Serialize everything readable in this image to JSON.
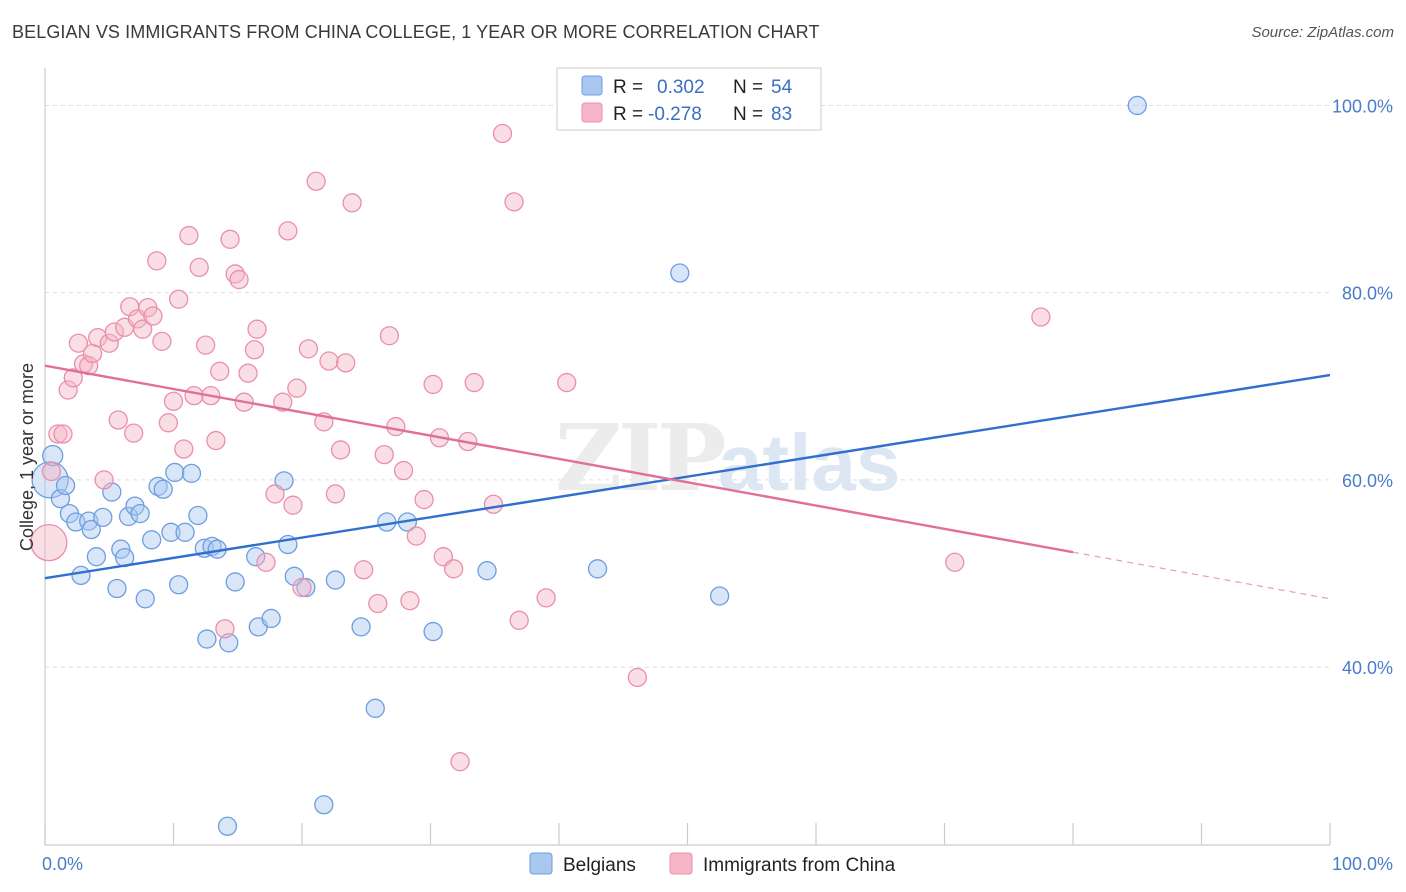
{
  "title": "BELGIAN VS IMMIGRANTS FROM CHINA COLLEGE, 1 YEAR OR MORE CORRELATION CHART",
  "source": "Source: ZipAtlas.com",
  "watermark": {
    "zip": "ZIP",
    "atlas": "atlas"
  },
  "colors": {
    "belgian_fill": "#a9c8f0",
    "belgian_stroke": "#6d9ee0",
    "belgian_line": "#2f6fce",
    "china_fill": "#f5b6c8",
    "china_stroke": "#ea8fab",
    "china_line": "#e0709a",
    "grid": "#dddddd",
    "tick_label": "#4a7cc9"
  },
  "legend": {
    "rows": [
      {
        "r_label": "R =",
        "r_value": "0.302",
        "n_label": "N =",
        "n_value": "54"
      },
      {
        "r_label": "R =",
        "r_value": "-0.278",
        "n_label": "N =",
        "n_value": "83"
      }
    ]
  },
  "bottom_legend": [
    "Belgians",
    "Immigrants from China"
  ],
  "chart_data": {
    "type": "scatter",
    "ylabel": "College, 1 year or more",
    "xlabel": "",
    "xlim": [
      0,
      100
    ],
    "ylim": [
      21,
      104
    ],
    "x_tick_labels": [
      {
        "value": 0,
        "label": "0.0%"
      },
      {
        "value": 100,
        "label": "100.0%"
      }
    ],
    "y_tick_labels": [
      {
        "value": 100,
        "label": "100.0%"
      },
      {
        "value": 80,
        "label": "80.0%"
      },
      {
        "value": 60,
        "label": "60.0%"
      },
      {
        "value": 40,
        "label": "40.0%"
      }
    ],
    "y_gridlines": [
      100,
      80,
      60,
      40
    ],
    "x_minor_ticks": [
      0,
      10,
      20,
      30,
      40,
      50,
      60,
      70,
      80,
      90,
      100
    ],
    "grid": true,
    "legend_placement": "top-center",
    "series": [
      {
        "name": "Belgians",
        "r": 0.302,
        "n": 54,
        "trend": {
          "x": [
            0,
            100
          ],
          "y": [
            49.5,
            71.2
          ],
          "dashed_from": null
        },
        "points": [
          [
            0.4,
            60.0,
            18
          ],
          [
            0.6,
            62.6,
            10
          ],
          [
            1.2,
            58.0,
            9
          ],
          [
            1.6,
            59.4,
            9
          ],
          [
            1.9,
            56.4,
            9
          ],
          [
            2.4,
            55.5,
            9
          ],
          [
            2.8,
            49.8,
            9
          ],
          [
            3.4,
            55.6,
            9
          ],
          [
            3.6,
            54.7,
            9
          ],
          [
            4.0,
            51.8,
            9
          ],
          [
            4.5,
            56.0,
            9
          ],
          [
            5.2,
            58.7,
            9
          ],
          [
            5.6,
            48.4,
            9
          ],
          [
            5.9,
            52.6,
            9
          ],
          [
            6.2,
            51.7,
            9
          ],
          [
            6.5,
            56.1,
            9
          ],
          [
            7.0,
            57.2,
            9
          ],
          [
            7.4,
            56.4,
            9
          ],
          [
            7.8,
            47.3,
            9
          ],
          [
            8.3,
            53.6,
            9
          ],
          [
            8.8,
            59.3,
            9
          ],
          [
            9.2,
            59.0,
            9
          ],
          [
            9.8,
            54.4,
            9
          ],
          [
            10.1,
            60.8,
            9
          ],
          [
            10.4,
            48.8,
            9
          ],
          [
            10.9,
            54.4,
            9
          ],
          [
            11.4,
            60.7,
            9
          ],
          [
            11.9,
            56.2,
            9
          ],
          [
            12.4,
            52.7,
            9
          ],
          [
            12.6,
            43.0,
            9
          ],
          [
            13.0,
            52.9,
            9
          ],
          [
            13.4,
            52.6,
            9
          ],
          [
            14.3,
            42.6,
            9
          ],
          [
            14.8,
            49.1,
            9
          ],
          [
            16.4,
            51.8,
            9
          ],
          [
            16.6,
            44.3,
            9
          ],
          [
            17.6,
            45.2,
            9
          ],
          [
            18.6,
            59.9,
            9
          ],
          [
            18.9,
            53.1,
            9
          ],
          [
            19.4,
            49.7,
            9
          ],
          [
            20.3,
            48.5,
            9
          ],
          [
            22.6,
            49.3,
            9
          ],
          [
            24.6,
            44.3,
            9
          ],
          [
            25.7,
            35.6,
            9
          ],
          [
            26.6,
            55.5,
            9
          ],
          [
            28.2,
            55.5,
            9
          ],
          [
            30.2,
            43.8,
            9
          ],
          [
            34.4,
            50.3,
            9
          ],
          [
            43.0,
            50.5,
            9
          ],
          [
            49.4,
            82.1,
            9
          ],
          [
            52.5,
            47.6,
            9
          ],
          [
            14.2,
            23.0,
            9
          ],
          [
            21.7,
            25.3,
            9
          ],
          [
            85.0,
            100.0,
            9
          ]
        ]
      },
      {
        "name": "Immigrants from China",
        "r": -0.278,
        "n": 83,
        "trend": {
          "x": [
            0,
            100
          ],
          "y": [
            72.2,
            47.3
          ],
          "dashed_from": 80
        },
        "points": [
          [
            0.3,
            53.3,
            18
          ],
          [
            0.5,
            60.9,
            9
          ],
          [
            1.0,
            64.9,
            9
          ],
          [
            1.4,
            64.9,
            9
          ],
          [
            1.8,
            69.6,
            9
          ],
          [
            2.2,
            70.9,
            9
          ],
          [
            2.6,
            74.6,
            9
          ],
          [
            3.0,
            72.4,
            9
          ],
          [
            3.4,
            72.2,
            9
          ],
          [
            3.7,
            73.5,
            9
          ],
          [
            4.1,
            75.2,
            9
          ],
          [
            4.6,
            60.0,
            9
          ],
          [
            5.0,
            74.6,
            9
          ],
          [
            5.4,
            75.8,
            9
          ],
          [
            5.7,
            66.4,
            9
          ],
          [
            6.2,
            76.3,
            9
          ],
          [
            6.6,
            78.5,
            9
          ],
          [
            6.9,
            65.0,
            9
          ],
          [
            7.2,
            77.2,
            9
          ],
          [
            7.6,
            76.1,
            9
          ],
          [
            8.0,
            78.4,
            9
          ],
          [
            8.4,
            77.5,
            9
          ],
          [
            8.7,
            83.4,
            9
          ],
          [
            9.1,
            74.8,
            9
          ],
          [
            9.6,
            66.1,
            9
          ],
          [
            10.0,
            68.4,
            9
          ],
          [
            10.4,
            79.3,
            9
          ],
          [
            10.8,
            63.3,
            9
          ],
          [
            11.2,
            86.1,
            9
          ],
          [
            11.6,
            69.0,
            9
          ],
          [
            12.0,
            82.7,
            9
          ],
          [
            12.5,
            74.4,
            9
          ],
          [
            12.9,
            69.0,
            9
          ],
          [
            13.3,
            64.2,
            9
          ],
          [
            13.6,
            71.6,
            9
          ],
          [
            14.0,
            44.1,
            9
          ],
          [
            14.4,
            85.7,
            9
          ],
          [
            14.8,
            82.0,
            9
          ],
          [
            15.1,
            81.4,
            9
          ],
          [
            15.5,
            68.3,
            9
          ],
          [
            15.8,
            71.4,
            9
          ],
          [
            16.3,
            73.9,
            9
          ],
          [
            16.5,
            76.1,
            9
          ],
          [
            17.2,
            51.2,
            9
          ],
          [
            17.9,
            58.5,
            9
          ],
          [
            18.5,
            68.3,
            9
          ],
          [
            18.9,
            86.6,
            9
          ],
          [
            19.3,
            57.3,
            9
          ],
          [
            19.6,
            69.8,
            9
          ],
          [
            20.0,
            48.5,
            9
          ],
          [
            20.5,
            74.0,
            9
          ],
          [
            21.1,
            91.9,
            9
          ],
          [
            21.7,
            66.2,
            9
          ],
          [
            22.1,
            72.7,
            9
          ],
          [
            22.6,
            58.5,
            9
          ],
          [
            23.0,
            63.2,
            9
          ],
          [
            23.4,
            72.5,
            9
          ],
          [
            23.9,
            89.6,
            9
          ],
          [
            24.8,
            50.4,
            9
          ],
          [
            25.9,
            46.8,
            9
          ],
          [
            26.4,
            62.7,
            9
          ],
          [
            26.8,
            75.4,
            9
          ],
          [
            27.3,
            65.7,
            9
          ],
          [
            27.9,
            61.0,
            9
          ],
          [
            28.4,
            47.1,
            9
          ],
          [
            28.9,
            54.0,
            9
          ],
          [
            29.5,
            57.9,
            9
          ],
          [
            30.2,
            70.2,
            9
          ],
          [
            30.7,
            64.5,
            9
          ],
          [
            31.0,
            51.8,
            9
          ],
          [
            31.8,
            50.5,
            9
          ],
          [
            32.3,
            29.9,
            9
          ],
          [
            32.9,
            64.1,
            9
          ],
          [
            33.4,
            70.4,
            9
          ],
          [
            34.9,
            57.4,
            9
          ],
          [
            35.6,
            97.0,
            9
          ],
          [
            36.5,
            89.7,
            9
          ],
          [
            36.9,
            45.0,
            9
          ],
          [
            39.0,
            47.4,
            9
          ],
          [
            40.6,
            70.4,
            9
          ],
          [
            46.1,
            38.9,
            9
          ],
          [
            70.8,
            51.2,
            9
          ],
          [
            77.5,
            77.4,
            9
          ]
        ]
      }
    ]
  }
}
